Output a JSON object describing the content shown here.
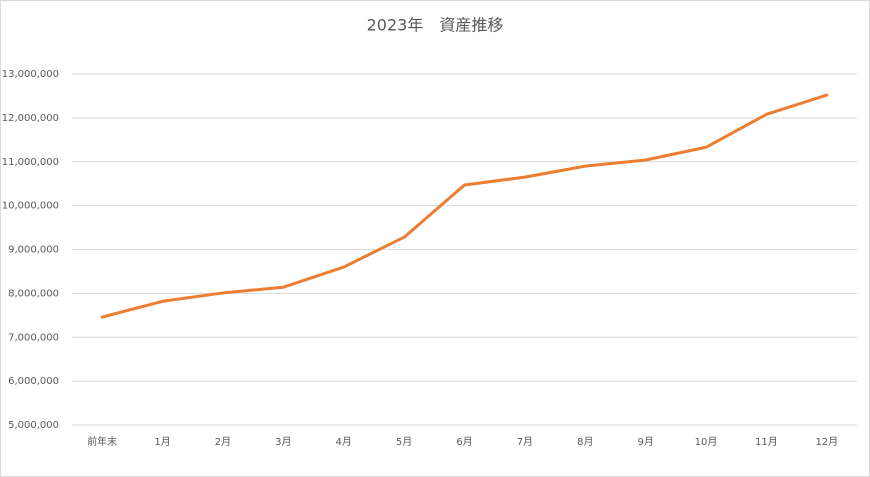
{
  "chart_data": {
    "type": "line",
    "title": "2023年　資産推移",
    "categories": [
      "前年末",
      "1月",
      "2月",
      "3月",
      "4月",
      "5月",
      "6月",
      "7月",
      "8月",
      "9月",
      "10月",
      "11月",
      "12月"
    ],
    "series": [
      {
        "name": "資産",
        "color": "#ed7d31",
        "values": [
          7460000,
          7820000,
          8010000,
          8140000,
          8600000,
          9280000,
          10470000,
          10650000,
          10900000,
          11040000,
          11330000,
          12080000,
          12520000
        ]
      }
    ],
    "ylim": [
      5000000,
      13000000
    ],
    "yticks": [
      {
        "value": 5000000,
        "label": "5,000,000"
      },
      {
        "value": 6000000,
        "label": "6,000,000"
      },
      {
        "value": 7000000,
        "label": "7,000,000"
      },
      {
        "value": 8000000,
        "label": "8,000,000"
      },
      {
        "value": 9000000,
        "label": "9,000,000"
      },
      {
        "value": 10000000,
        "label": "10,000,000"
      },
      {
        "value": 11000000,
        "label": "11,000,000"
      },
      {
        "value": 12000000,
        "label": "12,000,000"
      },
      {
        "value": 13000000,
        "label": "13,000,000"
      }
    ],
    "grid": true
  }
}
